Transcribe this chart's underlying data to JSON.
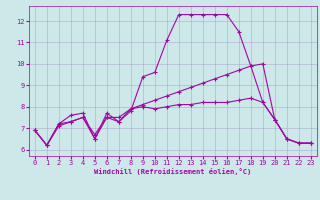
{
  "bg_color": "#cce8e8",
  "grid_color": "#aaaacc",
  "line_color": "#aa00aa",
  "marker": "+",
  "xlabel": "Windchill (Refroidissement éolien,°C)",
  "xlim": [
    -0.5,
    23.5
  ],
  "ylim": [
    5.7,
    12.7
  ],
  "yticks": [
    6,
    7,
    8,
    9,
    10,
    11,
    12
  ],
  "xticks": [
    0,
    1,
    2,
    3,
    4,
    5,
    6,
    7,
    8,
    9,
    10,
    11,
    12,
    13,
    14,
    15,
    16,
    17,
    18,
    19,
    20,
    21,
    22,
    23
  ],
  "line1_x": [
    0,
    1,
    2,
    3,
    4,
    5,
    6,
    7,
    8,
    9,
    10,
    11,
    12,
    13,
    14,
    15,
    16,
    17,
    18,
    19,
    20,
    21,
    22,
    23
  ],
  "line1_y": [
    6.9,
    6.2,
    7.2,
    7.6,
    7.7,
    6.5,
    7.7,
    7.3,
    7.8,
    9.4,
    9.6,
    11.1,
    12.3,
    12.3,
    12.3,
    12.3,
    12.3,
    11.5,
    9.9,
    8.2,
    7.4,
    6.5,
    6.3,
    6.3
  ],
  "line2_x": [
    0,
    1,
    2,
    3,
    4,
    5,
    6,
    7,
    8,
    9,
    10,
    11,
    12,
    13,
    14,
    15,
    16,
    17,
    18,
    19,
    20,
    21,
    22,
    23
  ],
  "line2_y": [
    6.9,
    6.2,
    7.2,
    7.3,
    7.5,
    6.5,
    7.5,
    7.3,
    7.9,
    8.0,
    7.9,
    8.0,
    8.1,
    8.1,
    8.2,
    8.2,
    8.2,
    8.3,
    8.4,
    8.2,
    7.4,
    6.5,
    6.3,
    6.3
  ],
  "line3_x": [
    0,
    1,
    2,
    3,
    4,
    5,
    6,
    7,
    8,
    9,
    10,
    11,
    12,
    13,
    14,
    15,
    16,
    17,
    18,
    19,
    20,
    21,
    22,
    23
  ],
  "line3_y": [
    6.9,
    6.2,
    7.1,
    7.3,
    7.5,
    6.7,
    7.5,
    7.5,
    7.9,
    8.1,
    8.3,
    8.5,
    8.7,
    8.9,
    9.1,
    9.3,
    9.5,
    9.7,
    9.9,
    10.0,
    7.4,
    6.5,
    6.3,
    6.3
  ],
  "figsize": [
    3.2,
    2.0
  ],
  "dpi": 100,
  "tick_labelsize": 5,
  "xlabel_fontsize": 5,
  "linewidth": 0.8,
  "markersize": 3
}
